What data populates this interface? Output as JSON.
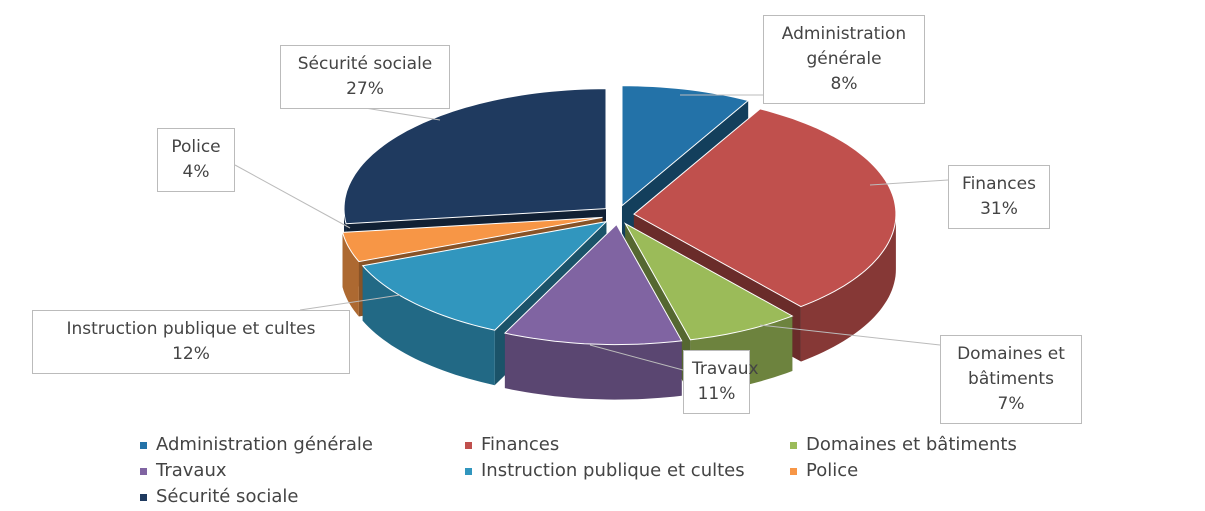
{
  "chart_data": {
    "type": "pie",
    "categories": [
      "Administration générale",
      "Finances",
      "Domaines et bâtiments",
      "Travaux",
      "Instruction publique et cultes",
      "Police",
      "Sécurité sociale"
    ],
    "values": [
      8,
      31,
      7,
      11,
      12,
      4,
      27
    ],
    "value_labels": [
      "8%",
      "31%",
      "7%",
      "11%",
      "12%",
      "4%",
      "27%"
    ],
    "colors": [
      "#2372a8",
      "#c0504d",
      "#9bbb59",
      "#8064a2",
      "#3196be",
      "#f79646",
      "#1f3a5f"
    ],
    "legend": "bottom"
  }
}
